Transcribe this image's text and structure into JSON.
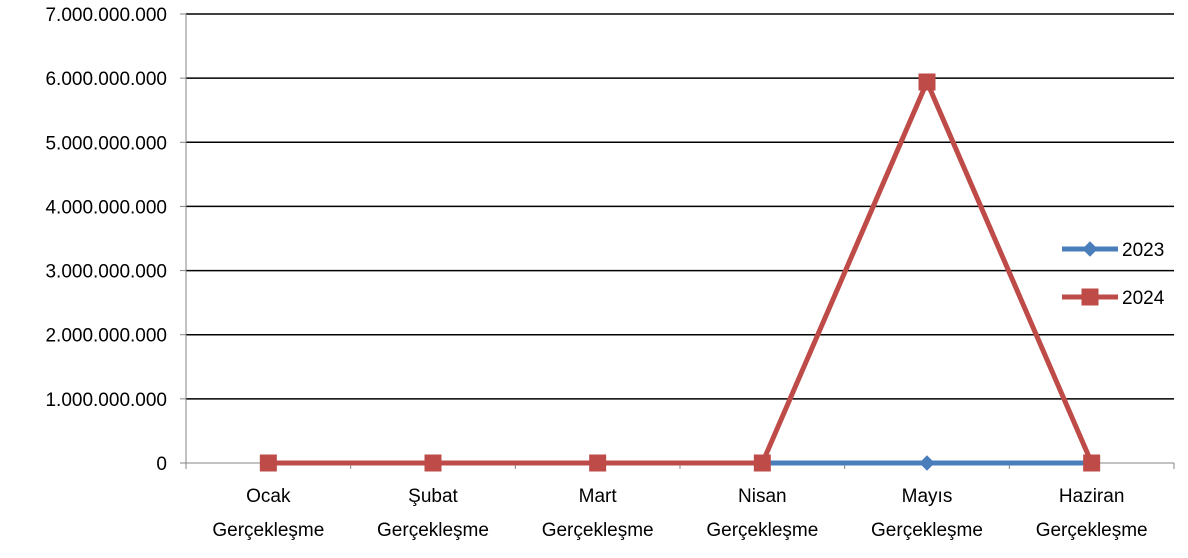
{
  "chart_data": {
    "type": "line",
    "title": "",
    "xlabel": "",
    "ylabel": "",
    "categories": [
      [
        "Ocak",
        "Gerçekleşme"
      ],
      [
        "Şubat",
        "Gerçekleşme"
      ],
      [
        "Mart",
        "Gerçekleşme"
      ],
      [
        "Nisan",
        "Gerçekleşme"
      ],
      [
        "Mayıs",
        "Gerçekleşme"
      ],
      [
        "Haziran",
        "Gerçekleşme"
      ]
    ],
    "ylim": [
      0,
      7000000000
    ],
    "yticks": [
      0,
      1000000000,
      2000000000,
      3000000000,
      4000000000,
      5000000000,
      6000000000,
      7000000000
    ],
    "ytick_labels": [
      "0",
      "1.000.000.000",
      "2.000.000.000",
      "3.000.000.000",
      "4.000.000.000",
      "5.000.000.000",
      "6.000.000.000",
      "7.000.000.000"
    ],
    "grid": true,
    "legend_position": "right",
    "series": [
      {
        "name": "2023",
        "color": "#4a7ebb",
        "marker": "diamond",
        "values": [
          null,
          null,
          null,
          0,
          0,
          0
        ]
      },
      {
        "name": "2024",
        "color": "#be4b48",
        "marker": "square",
        "values": [
          0,
          0,
          0,
          0,
          5940000000,
          0
        ]
      }
    ]
  }
}
